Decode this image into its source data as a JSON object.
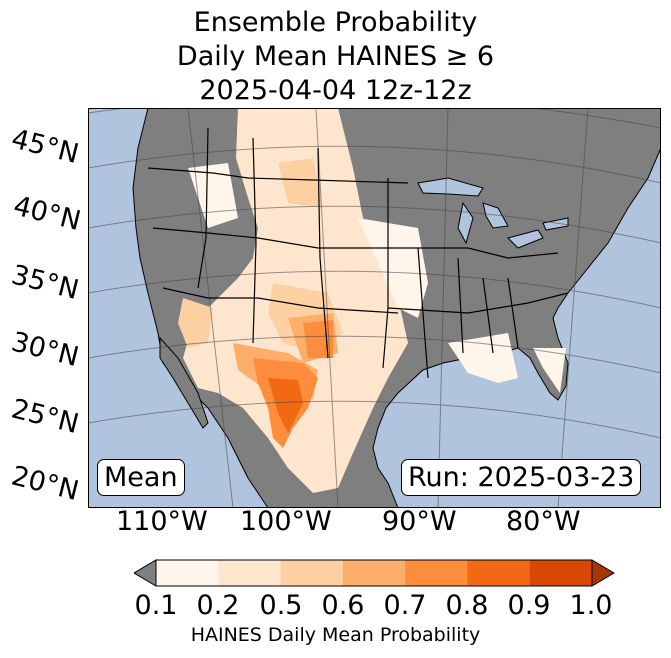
{
  "title": {
    "line1": "Ensemble Probability",
    "line2": "Daily Mean HAINES ≥ 6",
    "line3": "2025-04-04 12z-12z"
  },
  "map": {
    "latitude_labels": [
      "45°N",
      "40°N",
      "35°N",
      "30°N",
      "25°N",
      "20°N"
    ],
    "longitude_labels": [
      "110°W",
      "100°W",
      "90°W",
      "80°W"
    ],
    "ocean_color": "#b0c4de",
    "land_no_data_color": "#7f7f7f",
    "left_box": "Mean",
    "right_box": "Run: 2025-03-23"
  },
  "colorbar": {
    "tick_labels": [
      "0.1",
      "0.2",
      "0.5",
      "0.6",
      "0.7",
      "0.8",
      "0.9",
      "1.0"
    ],
    "colors": [
      "#fff5eb",
      "#fee6ce",
      "#fdd0a2",
      "#fdae6b",
      "#fd8d3c",
      "#f16913",
      "#d94801",
      "#a63603"
    ],
    "under_color": "#7f7f7f",
    "label": "HAINES Daily Mean Probability"
  }
}
